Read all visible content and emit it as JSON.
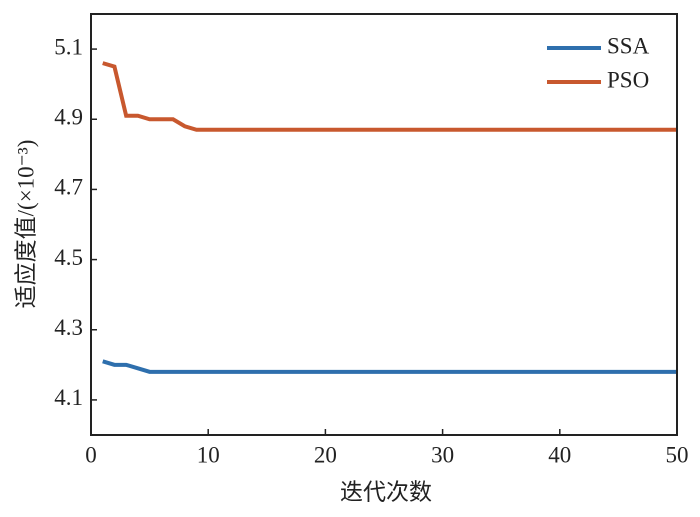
{
  "chart_data": {
    "type": "line",
    "xlabel": "迭代次数",
    "ylabel": "适应度值/(×10⁻³)",
    "x": [
      1,
      2,
      3,
      4,
      5,
      6,
      7,
      8,
      9,
      10,
      11,
      12,
      13,
      14,
      15,
      16,
      17,
      18,
      19,
      20,
      21,
      22,
      23,
      24,
      25,
      26,
      27,
      28,
      29,
      30,
      31,
      32,
      33,
      34,
      35,
      36,
      37,
      38,
      39,
      40,
      41,
      42,
      43,
      44,
      45,
      46,
      47,
      48,
      49,
      50
    ],
    "series": [
      {
        "name": "SSA",
        "color": "#2e6fad",
        "values": [
          4.21,
          4.2,
          4.2,
          4.19,
          4.18,
          4.18,
          4.18,
          4.18,
          4.18,
          4.18,
          4.18,
          4.18,
          4.18,
          4.18,
          4.18,
          4.18,
          4.18,
          4.18,
          4.18,
          4.18,
          4.18,
          4.18,
          4.18,
          4.18,
          4.18,
          4.18,
          4.18,
          4.18,
          4.18,
          4.18,
          4.18,
          4.18,
          4.18,
          4.18,
          4.18,
          4.18,
          4.18,
          4.18,
          4.18,
          4.18,
          4.18,
          4.18,
          4.18,
          4.18,
          4.18,
          4.18,
          4.18,
          4.18,
          4.18,
          4.18
        ]
      },
      {
        "name": "PSO",
        "color": "#c8582e",
        "values": [
          5.06,
          5.05,
          4.91,
          4.91,
          4.9,
          4.9,
          4.9,
          4.88,
          4.87,
          4.87,
          4.87,
          4.87,
          4.87,
          4.87,
          4.87,
          4.87,
          4.87,
          4.87,
          4.87,
          4.87,
          4.87,
          4.87,
          4.87,
          4.87,
          4.87,
          4.87,
          4.87,
          4.87,
          4.87,
          4.87,
          4.87,
          4.87,
          4.87,
          4.87,
          4.87,
          4.87,
          4.87,
          4.87,
          4.87,
          4.87,
          4.87,
          4.87,
          4.87,
          4.87,
          4.87,
          4.87,
          4.87,
          4.87,
          4.87,
          4.87
        ]
      }
    ],
    "xlim": [
      0,
      50
    ],
    "xticks": [
      0,
      10,
      20,
      30,
      40,
      50
    ],
    "ylim": [
      4.0,
      5.2
    ],
    "yticks": [
      4.1,
      4.3,
      4.5,
      4.7,
      4.9,
      5.1
    ],
    "grid": false,
    "legend": "upper right"
  }
}
